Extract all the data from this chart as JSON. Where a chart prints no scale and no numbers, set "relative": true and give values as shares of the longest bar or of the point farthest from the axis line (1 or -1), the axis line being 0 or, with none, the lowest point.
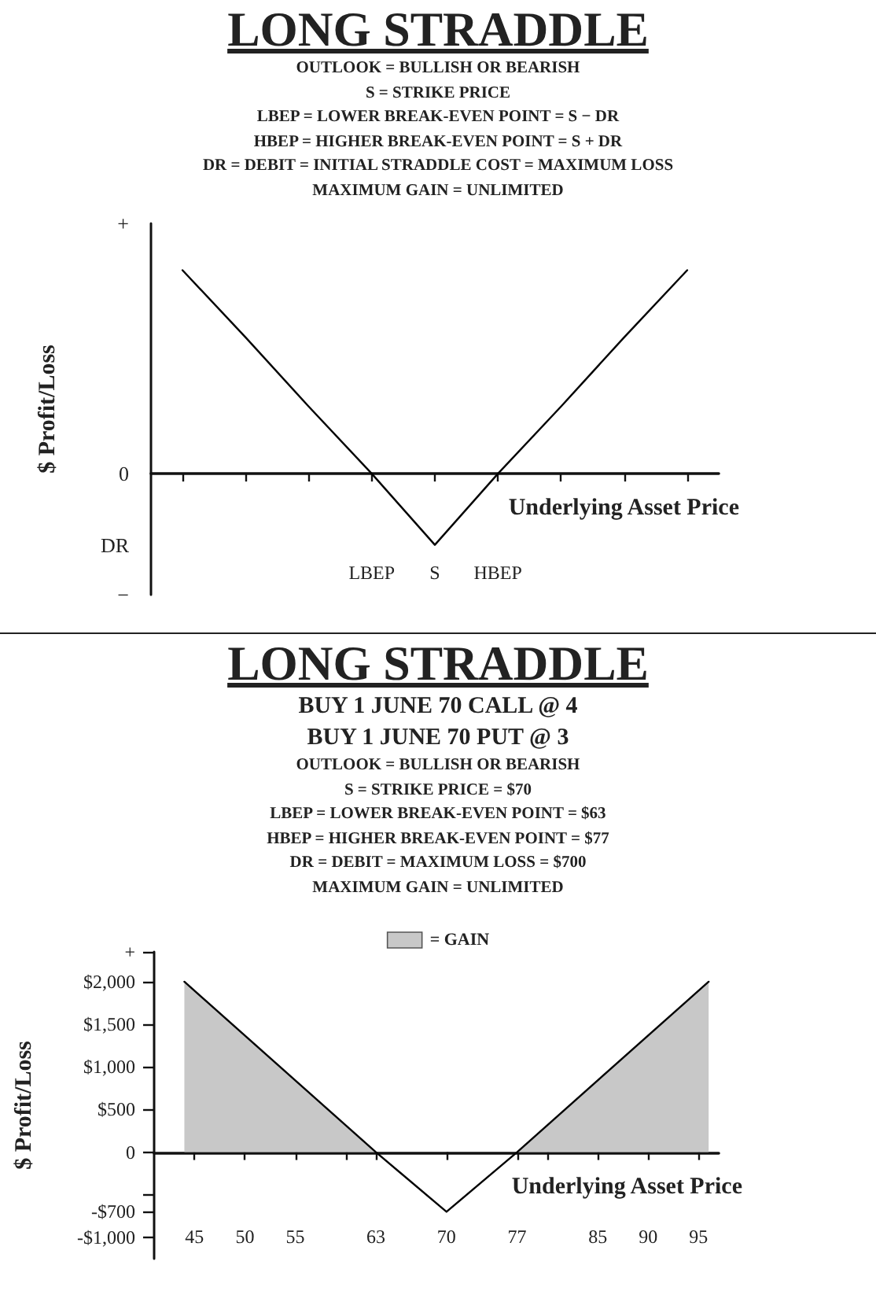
{
  "chart_data": [
    {
      "type": "line",
      "title": "LONG STRADDLE",
      "subtitle": "OUTLOOK = BULLISH OR BEARISH\nS = STRIKE PRICE\nLBEP = LOWER BREAK-EVEN POINT = S − DR\nHBEP = HIGHER BREAK-EVEN POINT = S + DR\nDR = DEBIT = INITIAL STRADDLE COST = MAXIMUM LOSS\nMAXIMUM GAIN = UNLIMITED",
      "relative": true,
      "line_style": "solid",
      "marker": "none",
      "xlabel": "Underlying Asset Price",
      "ylabel": "$ Profit/Loss",
      "categories": [
        null,
        null,
        null,
        "LBEP",
        "S",
        "HBEP",
        null,
        null,
        null
      ],
      "annotations": [
        "+",
        "0",
        "DR",
        "−"
      ],
      "series": [
        {
          "color": "#000000",
          "values": [
            1,
            0.67,
            0.33,
            0,
            -0.35,
            0,
            0.33,
            0.67,
            1
          ]
        }
      ]
    },
    {
      "type": "line",
      "title": "LONG STRADDLE",
      "subtitle": "BUY 1 JUNE 70 CALL @ 4\nBUY 1 JUNE 70 PUT @ 3",
      "line_style": "solid",
      "marker": "none",
      "legend": "top",
      "xlabel": "Underlying Asset Price",
      "ylabel": "$ Profit/Loss",
      "xlim": [
        41,
        97
      ],
      "xticks": [
        45,
        50,
        55,
        {
          "value": 60,
          "label": null
        },
        63,
        70,
        77,
        {
          "value": 80,
          "label": null
        },
        85,
        90,
        95
      ],
      "ylim": [
        -1250,
        2350
      ],
      "yticks": [
        {
          "value": -1000,
          "label": "-$1,000"
        },
        {
          "value": -700,
          "label": "-$700"
        },
        {
          "value": -500,
          "label": null
        },
        0,
        {
          "value": 500,
          "label": "$500"
        },
        {
          "value": 1000,
          "label": "$1,000"
        },
        {
          "value": 1500,
          "label": "$1,500"
        },
        {
          "value": 2000,
          "label": "$2,000"
        },
        {
          "value": 2350,
          "label": "+"
        }
      ],
      "annotations": [
        "OUTLOOK = BULLISH OR BEARISH",
        "S = STRIKE PRICE = $70",
        "LBEP = LOWER BREAK-EVEN POINT = $63",
        "HBEP = HIGHER BREAK-EVEN POINT = $77",
        "DR = DEBIT = MAXIMUM LOSS = $700",
        "MAXIMUM GAIN = UNLIMITED"
      ],
      "series": [
        {
          "type": "area",
          "name": "= GAIN",
          "color": "#c8c8c8",
          "x": [
            44,
            63,
            70,
            77,
            96
          ],
          "values": [
            2000,
            0,
            null,
            0,
            2000
          ]
        },
        {
          "color": "#000000",
          "x": [
            44,
            63,
            70,
            77,
            96
          ],
          "values": [
            2000,
            0,
            -700,
            0,
            2000
          ]
        }
      ]
    }
  ]
}
